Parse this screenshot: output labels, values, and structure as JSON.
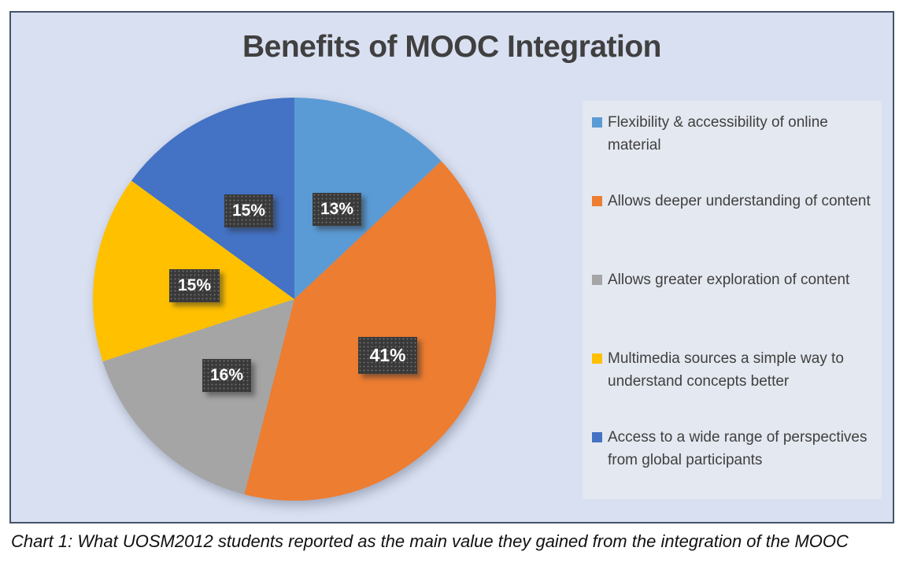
{
  "chart": {
    "title": "Benefits of MOOC Integration",
    "caption": "Chart 1: What UOSM2012 students reported as the main value they gained from the integration of the MOOC"
  },
  "chart_data": {
    "type": "pie",
    "title": "Benefits of MOOC Integration",
    "start_angle_deg": 0,
    "direction": "clockwise",
    "legend_position": "right",
    "background_color": "#d9e0f1",
    "legend_background_color": "#e4e8f0",
    "frame_border_color": "#44546a",
    "label_box_color": "#393939",
    "label_text_color": "#ffffff",
    "slices": [
      {
        "label": "Flexibility & accessibility of online material",
        "value": 13,
        "display": "13%",
        "color": "#5B9BD5"
      },
      {
        "label": "Allows deeper understanding of content",
        "value": 41,
        "display": "41%",
        "color": "#ED7D31"
      },
      {
        "label": "Allows greater exploration of content",
        "value": 16,
        "display": "16%",
        "color": "#A5A5A5"
      },
      {
        "label": "Multimedia sources a simple way to understand concepts better",
        "value": 15,
        "display": "15%",
        "color": "#FFC000"
      },
      {
        "label": "Access to a wide range of perspectives from global participants",
        "value": 15,
        "display": "15%",
        "color": "#4472C4"
      }
    ]
  }
}
